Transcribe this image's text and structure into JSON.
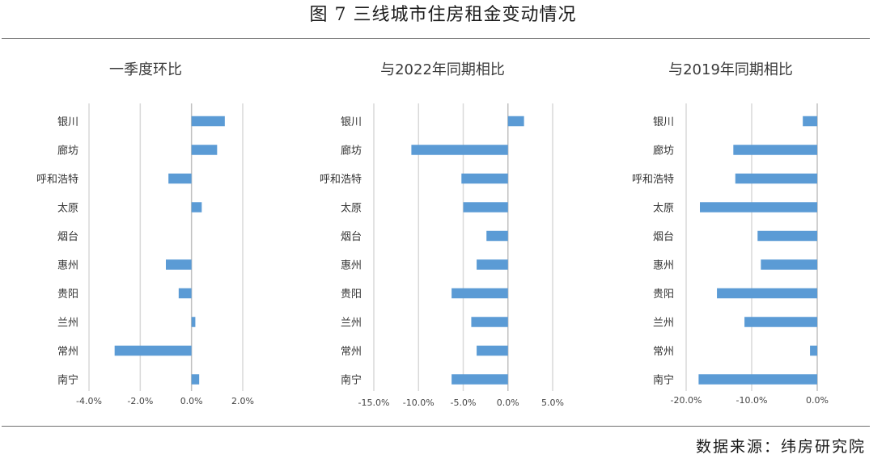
{
  "figure_title": "图 7  三线城市住房租金变动情况",
  "source": "数据来源：纬房研究院",
  "colors": {
    "bar": "#5b9bd5",
    "grid": "#d9d9d9",
    "axis": "#c0c0c0"
  },
  "chart_data": [
    {
      "type": "bar",
      "orientation": "horizontal",
      "title": "一季度环比",
      "categories": [
        "银川",
        "廊坊",
        "呼和浩特",
        "太原",
        "烟台",
        "惠州",
        "贵阳",
        "兰州",
        "常州",
        "南宁"
      ],
      "values": [
        1.3,
        1.0,
        -0.9,
        0.4,
        0.0,
        -1.0,
        -0.5,
        0.15,
        -3.0,
        0.3
      ],
      "unit": "%",
      "xlim": [
        -4.0,
        2.0
      ],
      "ticks": [
        -4.0,
        -2.0,
        0.0,
        2.0
      ],
      "tick_labels": [
        "-4.0%",
        "-2.0%",
        "0.0%",
        "2.0%"
      ],
      "grid": true
    },
    {
      "type": "bar",
      "orientation": "horizontal",
      "title": "与2022年同期相比",
      "categories": [
        "银川",
        "廊坊",
        "呼和浩特",
        "太原",
        "烟台",
        "惠州",
        "贵阳",
        "兰州",
        "常州",
        "南宁"
      ],
      "values": [
        1.8,
        -10.8,
        -5.2,
        -5.0,
        -2.4,
        -3.5,
        -6.3,
        -4.1,
        -3.5,
        -6.3
      ],
      "unit": "%",
      "xlim": [
        -15.0,
        5.0
      ],
      "ticks": [
        -15.0,
        -10.0,
        -5.0,
        0.0,
        5.0
      ],
      "tick_labels": [
        "-15.0%",
        "-10.0%",
        "-5.0%",
        "0.0%",
        "5.0%"
      ],
      "grid": true
    },
    {
      "type": "bar",
      "orientation": "horizontal",
      "title": "与2019年同期相比",
      "categories": [
        "银川",
        "廊坊",
        "呼和浩特",
        "太原",
        "烟台",
        "惠州",
        "贵阳",
        "兰州",
        "常州",
        "南宁"
      ],
      "values": [
        -2.2,
        -12.8,
        -12.5,
        -17.9,
        -9.1,
        -8.6,
        -15.3,
        -11.1,
        -1.1,
        -18.1
      ],
      "unit": "%",
      "xlim": [
        -20.0,
        0.0
      ],
      "ticks": [
        -20.0,
        -10.0,
        0.0
      ],
      "tick_labels": [
        "-20.0%",
        "-10.0%",
        "0.0%"
      ],
      "grid": true
    }
  ]
}
